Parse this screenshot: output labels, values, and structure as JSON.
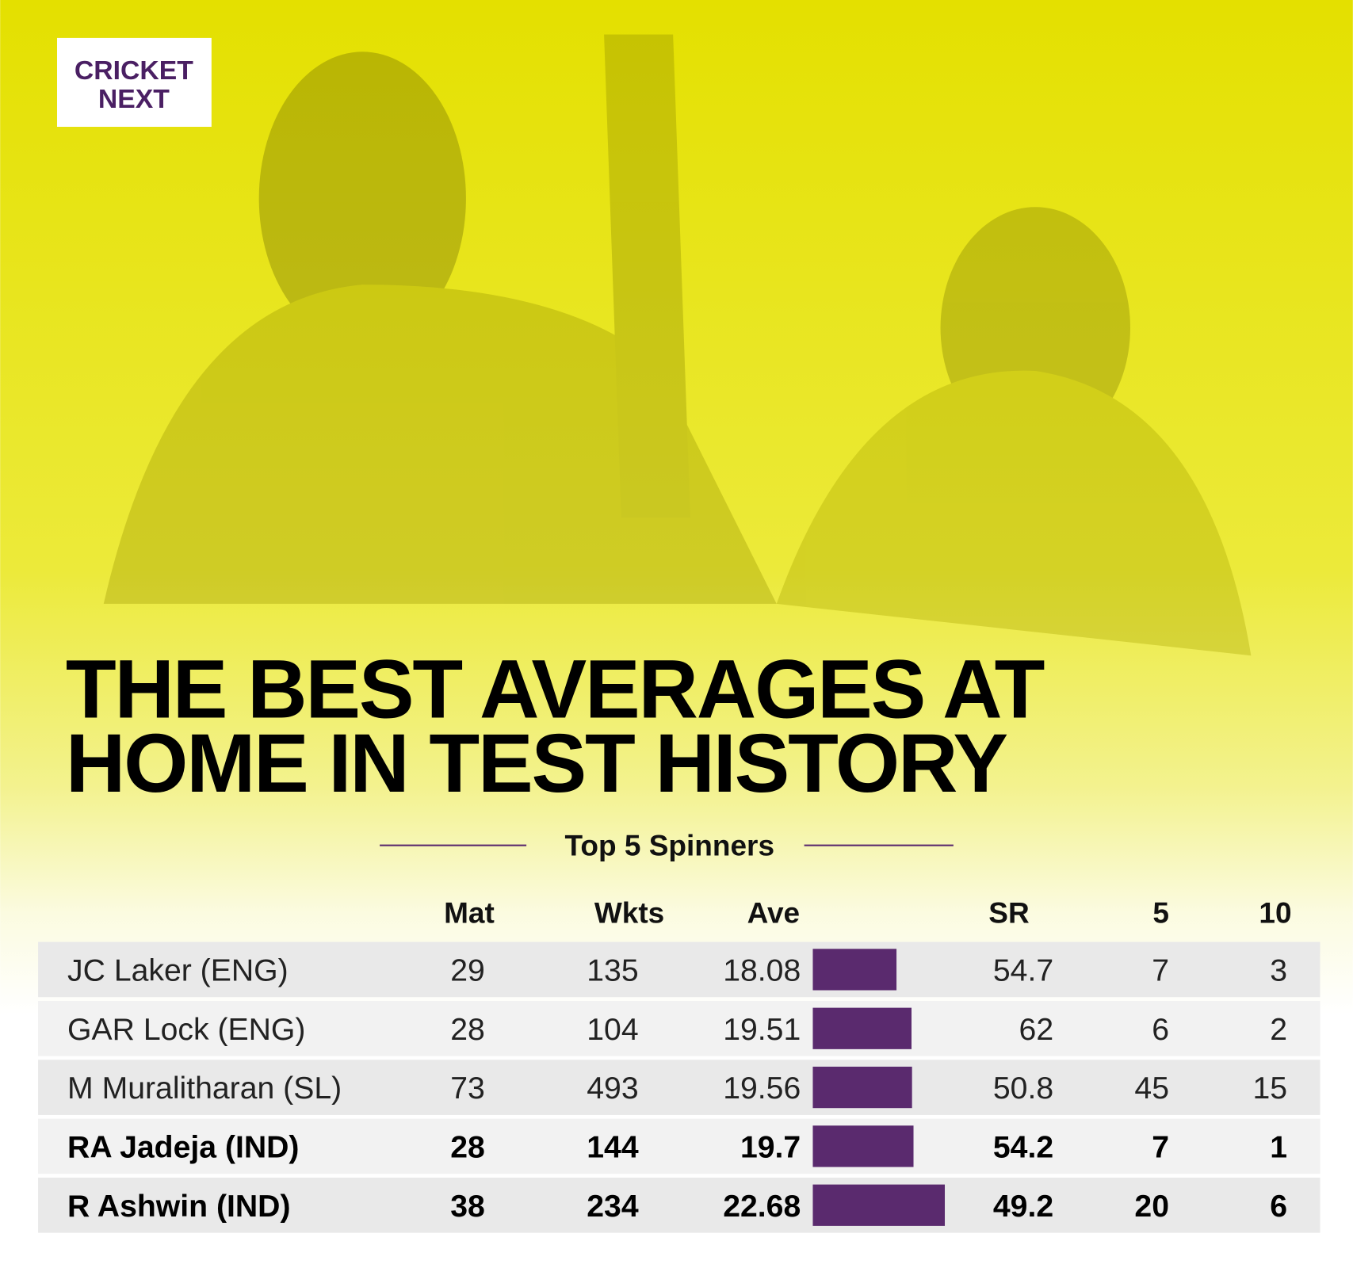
{
  "logo": {
    "line1": "CRICKET",
    "line2": "NEXT"
  },
  "title": {
    "line1": "THE BEST AVERAGES AT",
    "line2": "HOME IN TEST HISTORY"
  },
  "subtitle": "Top 5 Spinners",
  "table": {
    "columns": [
      "Mat",
      "Wkts",
      "Ave",
      "SR",
      "5",
      "10"
    ],
    "bar_color": "#5a2a6e",
    "rows": [
      {
        "player": "JC Laker (ENG)",
        "mat": 29,
        "wkts": 135,
        "ave": 18.08,
        "sr": 54.7,
        "five": 7,
        "ten": 3,
        "bold": false
      },
      {
        "player": "GAR Lock (ENG)",
        "mat": 28,
        "wkts": 104,
        "ave": 19.51,
        "sr": 62,
        "five": 6,
        "ten": 2,
        "bold": false
      },
      {
        "player": "M Muralitharan (SL)",
        "mat": 73,
        "wkts": 493,
        "ave": 19.56,
        "sr": 50.8,
        "five": 45,
        "ten": 15,
        "bold": false
      },
      {
        "player": "RA Jadeja (IND)",
        "mat": 28,
        "wkts": 144,
        "ave": 19.7,
        "sr": 54.2,
        "five": 7,
        "ten": 1,
        "bold": true
      },
      {
        "player": "R Ashwin (IND)",
        "mat": 38,
        "wkts": 234,
        "ave": 22.68,
        "sr": 49.2,
        "five": 20,
        "ten": 6,
        "bold": true
      }
    ]
  }
}
